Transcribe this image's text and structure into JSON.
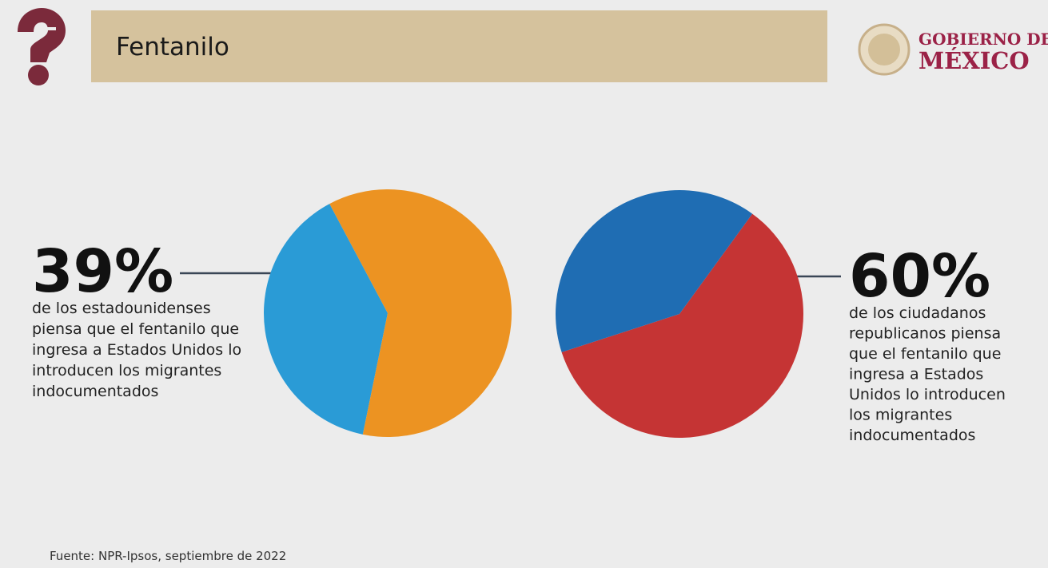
{
  "header": {
    "title": "Fentanilo",
    "logo_line1": "GOBIERNO DE",
    "logo_line2": "MÉXICO"
  },
  "footer": {
    "source": "Fuente: NPR-Ipsos, septiembre de 2022"
  },
  "chart_data": [
    {
      "type": "pie",
      "values": [
        39,
        61
      ],
      "value_labels": [
        "39%",
        null
      ],
      "colors": [
        "#2a9bd6",
        "#ec9322"
      ],
      "caption_lines": [
        "de los estadounidenses",
        "piensa que el fentanilo que",
        "ingresa a Estados Unidos lo",
        "introducen los migrantes",
        "indocumentados"
      ]
    },
    {
      "type": "pie",
      "values": [
        60,
        40
      ],
      "value_labels": [
        "60%",
        null
      ],
      "colors": [
        "#c53434",
        "#1f6db3"
      ],
      "caption_lines": [
        "de los ciudadanos",
        "republicanos piensa",
        "que el fentanilo que",
        "ingresa a Estados",
        "Unidos lo introducen",
        "los migrantes",
        "indocumentados"
      ]
    }
  ]
}
